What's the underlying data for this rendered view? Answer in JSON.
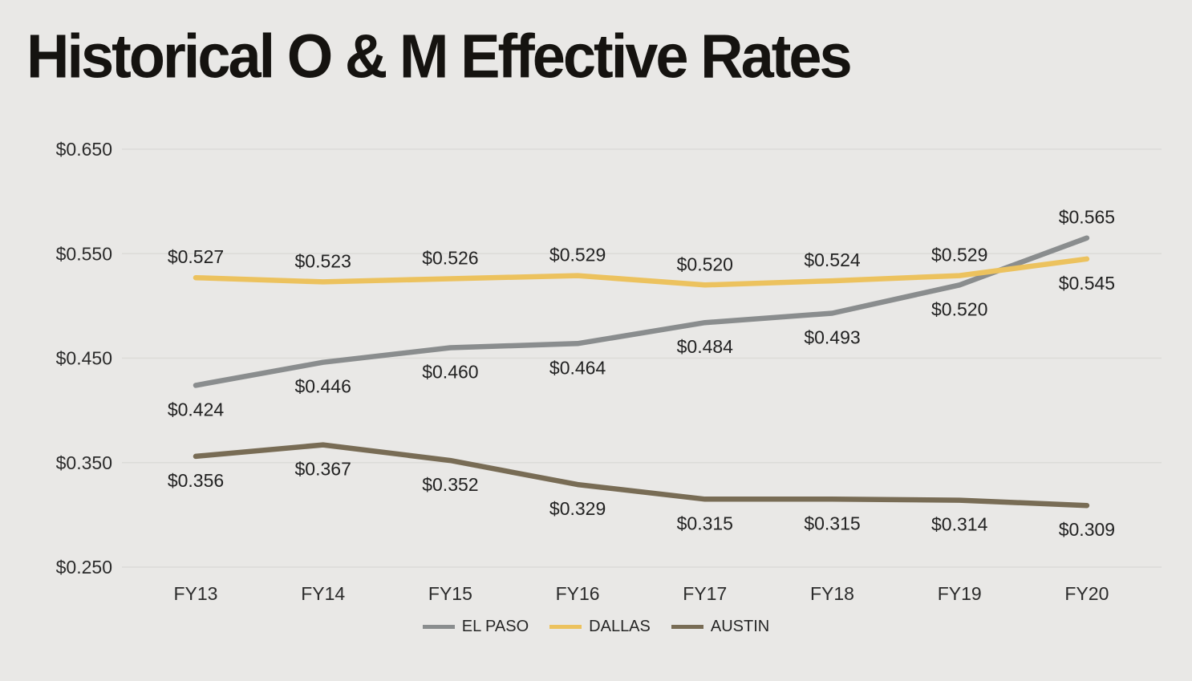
{
  "page": {
    "title": "Historical O & M Effective Rates"
  },
  "colors": {
    "background": "#e9e8e6",
    "grid": "#dcdbd8",
    "tick_text": "#2b2b2b",
    "label_text": "#222222",
    "title_text": "#151310"
  },
  "chart_data": {
    "type": "line",
    "title": "Historical O & M Effective Rates",
    "categories": [
      "FY13",
      "FY14",
      "FY15",
      "FY16",
      "FY17",
      "FY18",
      "FY19",
      "FY20"
    ],
    "series": [
      {
        "name": "EL PASO",
        "color": "#8a8d8e",
        "values": [
          0.424,
          0.446,
          0.46,
          0.464,
          0.484,
          0.493,
          0.52,
          0.565
        ],
        "point_labels": [
          "$0.424",
          "$0.446",
          "$0.460",
          "$0.464",
          "$0.484",
          "$0.493",
          "$0.520",
          "$0.565"
        ],
        "label_pos": [
          "below",
          "below",
          "below",
          "below",
          "below",
          "below",
          "below",
          "above"
        ]
      },
      {
        "name": "DALLAS",
        "color": "#ecc25e",
        "values": [
          0.527,
          0.523,
          0.526,
          0.529,
          0.52,
          0.524,
          0.529,
          0.545
        ],
        "point_labels": [
          "$0.527",
          "$0.523",
          "$0.526",
          "$0.529",
          "$0.520",
          "$0.524",
          "$0.529",
          "$0.545"
        ],
        "label_pos": [
          "above",
          "above",
          "above",
          "above",
          "above",
          "above",
          "above",
          "below"
        ]
      },
      {
        "name": "AUSTIN",
        "color": "#786c55",
        "values": [
          0.356,
          0.367,
          0.352,
          0.329,
          0.315,
          0.315,
          0.314,
          0.309
        ],
        "point_labels": [
          "$0.356",
          "$0.367",
          "$0.352",
          "$0.329",
          "$0.315",
          "$0.315",
          "$0.314",
          "$0.309"
        ],
        "label_pos": [
          "below",
          "below",
          "below",
          "below",
          "below",
          "below",
          "below",
          "below"
        ]
      }
    ],
    "ylim": [
      0.25,
      0.65
    ],
    "yticks": [
      {
        "value": 0.65,
        "label": "$0.650"
      },
      {
        "value": 0.55,
        "label": "$0.550"
      },
      {
        "value": 0.45,
        "label": "$0.450"
      },
      {
        "value": 0.35,
        "label": "$0.350"
      },
      {
        "value": 0.25,
        "label": "$0.250"
      }
    ],
    "grid": true,
    "legend_position": "bottom"
  }
}
